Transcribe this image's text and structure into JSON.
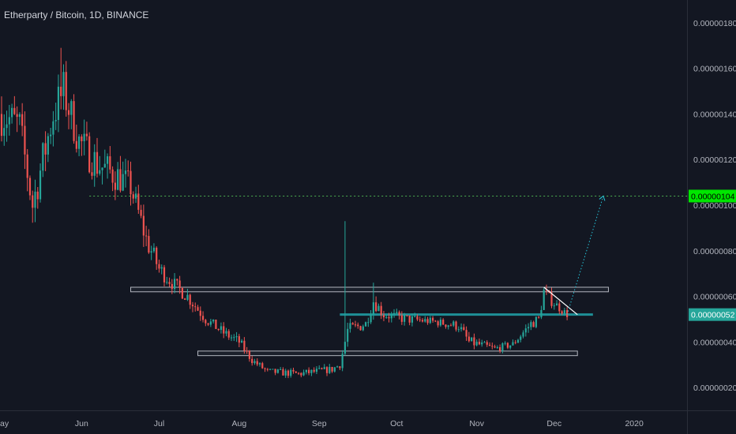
{
  "header": {
    "title": "Etherparty / Bitcoin, 1D, BINANCE"
  },
  "colors": {
    "background": "#131722",
    "up": "#26a69a",
    "down": "#ef5350",
    "target_line": "#4caf50",
    "support_line": "#1e8f97",
    "current_tag": "#26a69a",
    "target_tag": "#00e600",
    "box_border": "#b2b5be",
    "projection": "#26c6da",
    "wedge_line": "#ffffff"
  },
  "chart_data": {
    "type": "candlestick",
    "title": "Etherparty / Bitcoin, 1D, BINANCE",
    "xlabel": "",
    "ylabel": "",
    "ylim": [
      1e-07,
      1.9e-06
    ],
    "grid": false,
    "x_ticks": [
      "ay",
      "Jun",
      "Jul",
      "Aug",
      "Sep",
      "Oct",
      "Nov",
      "Dec",
      "2020"
    ],
    "y_ticks": [
      "0.00000020",
      "0.00000040",
      "0.00000060",
      "0.00000080",
      "0.00000100",
      "0.00000120",
      "0.00000140",
      "0.00000160",
      "0.00000180"
    ],
    "price_tags": [
      {
        "label": "0.00000104",
        "value": 1.04e-06,
        "role": "target"
      },
      {
        "label": "0.00000052",
        "value": 5.2e-07,
        "role": "current"
      }
    ],
    "horizontal_levels": [
      {
        "name": "target",
        "value": 1.04e-06,
        "style": "dotted"
      },
      {
        "name": "support",
        "value": 5.2e-07,
        "style": "solid"
      }
    ],
    "range_boxes": [
      {
        "from": "2019-06-20",
        "to": "2019-12-22",
        "low": 6.2e-07,
        "high": 6.4e-07
      },
      {
        "from": "2019-07-16",
        "to": "2019-12-10",
        "low": 3.4e-07,
        "high": 3.6e-07
      }
    ],
    "start_date": "2019-05-01",
    "end_date": "2019-12-06",
    "anchors": [
      [
        "2019-05-01",
        1.4e-06,
        1.2e-07
      ],
      [
        "2019-05-08",
        1.35e-06,
        1e-07
      ],
      [
        "2019-05-13",
        1e-06,
        1e-07
      ],
      [
        "2019-05-21",
        1.4e-06,
        1.2e-07
      ],
      [
        "2019-05-25",
        1.5e-06,
        1.2e-07
      ],
      [
        "2019-05-31",
        1.28e-06,
        1e-07
      ],
      [
        "2019-06-07",
        1.18e-06,
        1e-07
      ],
      [
        "2019-06-16",
        1.12e-06,
        9e-08
      ],
      [
        "2019-06-20",
        1.08e-06,
        8e-08
      ],
      [
        "2019-06-26",
        8.5e-07,
        7e-08
      ],
      [
        "2019-07-01",
        7.2e-07,
        5e-08
      ],
      [
        "2019-07-06",
        6.6e-07,
        4e-08
      ],
      [
        "2019-07-12",
        6e-07,
        4e-08
      ],
      [
        "2019-07-19",
        5e-07,
        3e-08
      ],
      [
        "2019-07-26",
        4.4e-07,
        3e-08
      ],
      [
        "2019-08-01",
        4e-07,
        3e-08
      ],
      [
        "2019-08-06",
        3.2e-07,
        2e-08
      ],
      [
        "2019-08-12",
        2.7e-07,
        2e-08
      ],
      [
        "2019-08-24",
        2.6e-07,
        2e-08
      ],
      [
        "2019-09-06",
        2.8e-07,
        2e-08
      ],
      [
        "2019-09-09",
        3e-07,
        2e-08
      ],
      [
        "2019-09-12",
        4.5e-07,
        4e-08
      ],
      [
        "2019-09-19",
        4.8e-07,
        3e-08
      ],
      [
        "2019-09-22",
        5.8e-07,
        4e-08
      ],
      [
        "2019-09-26",
        5.2e-07,
        3e-08
      ],
      [
        "2019-10-05",
        5e-07,
        3e-08
      ],
      [
        "2019-10-15",
        4.9e-07,
        2e-08
      ],
      [
        "2019-10-25",
        4.7e-07,
        3e-08
      ],
      [
        "2019-10-29",
        4e-07,
        3e-08
      ],
      [
        "2019-11-08",
        3.7e-07,
        2e-08
      ],
      [
        "2019-11-15",
        3.9e-07,
        2e-08
      ],
      [
        "2019-11-22",
        4.8e-07,
        3e-08
      ],
      [
        "2019-11-25",
        5e-07,
        3e-08
      ],
      [
        "2019-11-27",
        6.2e-07,
        4e-08
      ],
      [
        "2019-11-30",
        5.8e-07,
        3e-08
      ],
      [
        "2019-12-06",
        5.2e-07,
        2e-08
      ]
    ],
    "spikes": [
      {
        "date": "2019-05-24",
        "high": 1.69e-06
      },
      {
        "date": "2019-09-11",
        "high": 9.3e-07
      },
      {
        "date": "2019-09-22",
        "high": 6.6e-07
      },
      {
        "date": "2019-11-27",
        "high": 6.4e-07
      }
    ],
    "wedge_line": {
      "from": [
        "2019-11-27",
        6.4e-07
      ],
      "to": [
        "2019-12-10",
        5.2e-07
      ]
    },
    "projection": {
      "from": [
        "2019-12-06",
        5.2e-07
      ],
      "to": [
        "2019-12-20",
        1.04e-06
      ]
    }
  }
}
